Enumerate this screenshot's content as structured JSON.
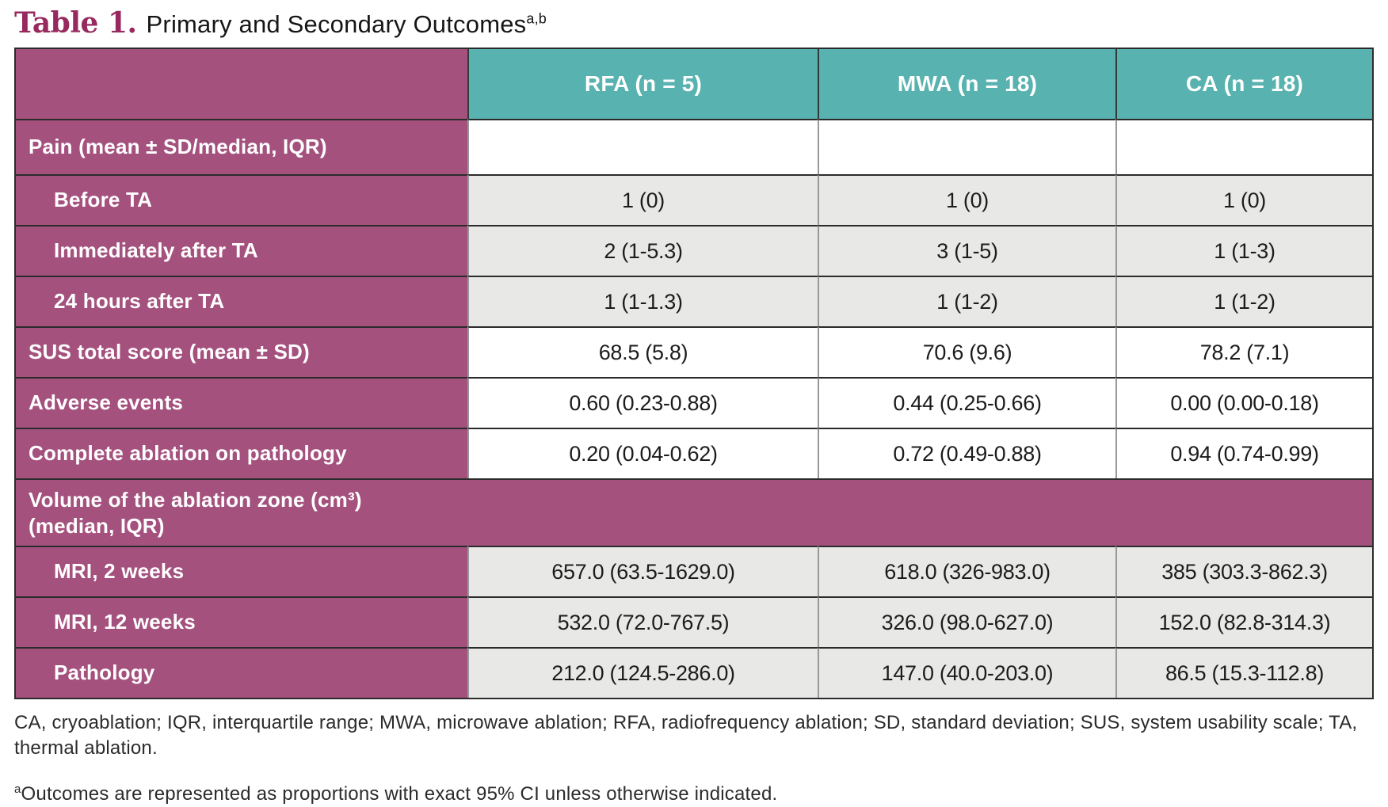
{
  "title": {
    "label": "Table 1.",
    "text": "Primary and Secondary Outcomes",
    "superscript": "a,b"
  },
  "colors": {
    "accent_purple": "#a4517e",
    "accent_teal": "#58b2af",
    "row_gray": "#e8e8e6",
    "title_magenta": "#97295f"
  },
  "table": {
    "columns": [
      "RFA (n = 5)",
      "MWA (n = 18)",
      "CA (n = 18)"
    ],
    "rows": [
      {
        "label": "Pain (mean ± SD/median, IQR)",
        "values": [
          "",
          "",
          ""
        ]
      },
      {
        "label": "Before TA",
        "values": [
          "1 (0)",
          "1 (0)",
          "1 (0)"
        ]
      },
      {
        "label": "Immediately after TA",
        "values": [
          "2 (1-5.3)",
          "3 (1-5)",
          "1 (1-3)"
        ]
      },
      {
        "label": "24 hours after TA",
        "values": [
          "1 (1-1.3)",
          "1 (1-2)",
          "1 (1-2)"
        ]
      },
      {
        "label": "SUS total score (mean ± SD)",
        "values": [
          "68.5 (5.8)",
          "70.6 (9.6)",
          "78.2 (7.1)"
        ]
      },
      {
        "label": "Adverse events",
        "values": [
          "0.60 (0.23-0.88)",
          "0.44 (0.25-0.66)",
          "0.00 (0.00-0.18)"
        ]
      },
      {
        "label": "Complete ablation on pathology",
        "values": [
          "0.20 (0.04-0.62)",
          "0.72 (0.49-0.88)",
          "0.94 (0.74-0.99)"
        ]
      },
      {
        "label": "Volume of the ablation zone (cm³)\n(median, IQR)",
        "values": []
      },
      {
        "label": "MRI, 2 weeks",
        "values": [
          "657.0 (63.5-1629.0)",
          "618.0 (326-983.0)",
          "385 (303.3-862.3)"
        ]
      },
      {
        "label": "MRI, 12 weeks",
        "values": [
          "532.0 (72.0-767.5)",
          "326.0 (98.0-627.0)",
          "152.0 (82.8-314.3)"
        ]
      },
      {
        "label": "Pathology",
        "values": [
          "212.0 (124.5-286.0)",
          "147.0 (40.0-203.0)",
          "86.5 (15.3-112.8)"
        ]
      }
    ]
  },
  "footnotes": {
    "abbreviations": "CA, cryoablation; IQR, interquartile range; MWA, microwave ablation; RFA, radiofrequency ablation; SD, standard deviation; SUS, system usability scale; TA, thermal ablation.",
    "note_a_marker": "a",
    "note_a_text": "Outcomes are represented as proportions with exact 95% CI unless otherwise indicated."
  }
}
